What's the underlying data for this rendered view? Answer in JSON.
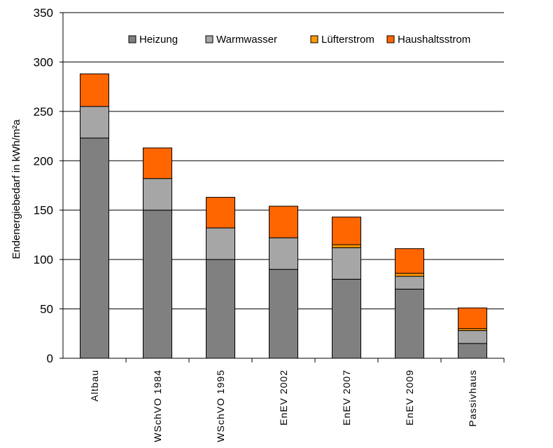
{
  "chart_data": {
    "type": "bar",
    "stacked": true,
    "categories": [
      "Altbau",
      "WSchVO 1984",
      "WSchVO 1995",
      "EnEV 2002",
      "EnEV 2007",
      "EnEV 2009",
      "Passivhaus"
    ],
    "series": [
      {
        "name": "Heizung",
        "color": "#808080",
        "values": [
          223,
          150,
          100,
          90,
          80,
          70,
          15
        ]
      },
      {
        "name": "Warmwasser",
        "color": "#a6a6a6",
        "values": [
          32,
          32,
          32,
          32,
          32,
          13,
          13
        ]
      },
      {
        "name": "Lüfterstrom",
        "color": "#ff9900",
        "values": [
          0,
          0,
          0,
          0,
          3,
          3,
          2
        ]
      },
      {
        "name": "Haushaltsstrom",
        "color": "#ff6600",
        "values": [
          33,
          31,
          31,
          32,
          28,
          25,
          21
        ]
      }
    ],
    "ylabel": "Endenergiebedarf in kWh/m²a",
    "xlabel": "",
    "ylim": [
      0,
      350
    ],
    "yticks": [
      0,
      50,
      100,
      150,
      200,
      250,
      300,
      350
    ],
    "grid": true,
    "legend_position": "top"
  }
}
